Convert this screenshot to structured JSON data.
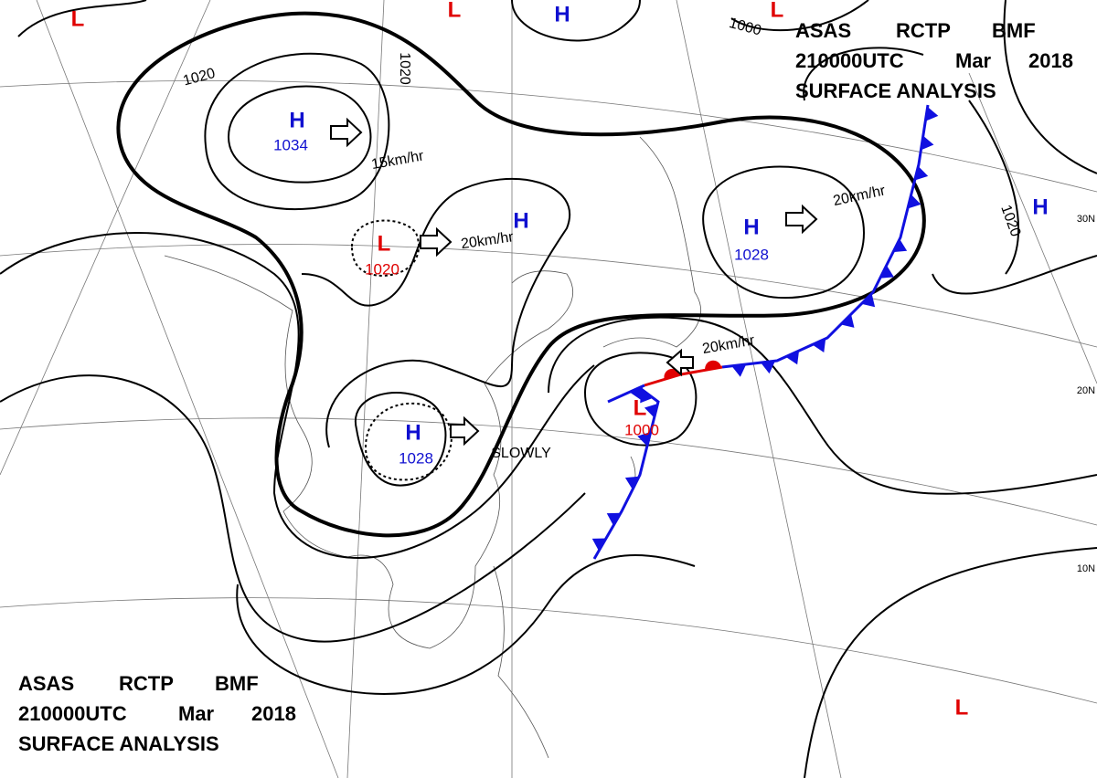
{
  "header": {
    "product": "ASAS",
    "center": "RCTP",
    "office": "BMF",
    "time": "210000UTC",
    "month": "Mar",
    "year": "2018",
    "title": "SURFACE ANALYSIS"
  },
  "pressure_centers": [
    {
      "type": "H",
      "value": 1034
    },
    {
      "type": "L",
      "value": 1020
    },
    {
      "type": "H",
      "value": 1028
    },
    {
      "type": "H",
      "value": 1028
    },
    {
      "type": "L",
      "value": 1000
    },
    {
      "type": "H"
    },
    {
      "type": "H"
    },
    {
      "type": "L"
    },
    {
      "type": "L"
    },
    {
      "type": "L"
    },
    {
      "type": "H"
    },
    {
      "type": "L"
    }
  ],
  "isobar_labels": [
    1020,
    1020,
    1000,
    1020
  ],
  "motion_labels": [
    "15km/hr",
    "20km/hr",
    "20km/hr",
    "20km/hr",
    "SLOWLY"
  ],
  "latitude_labels": [
    "30N",
    "20N",
    "10N"
  ]
}
